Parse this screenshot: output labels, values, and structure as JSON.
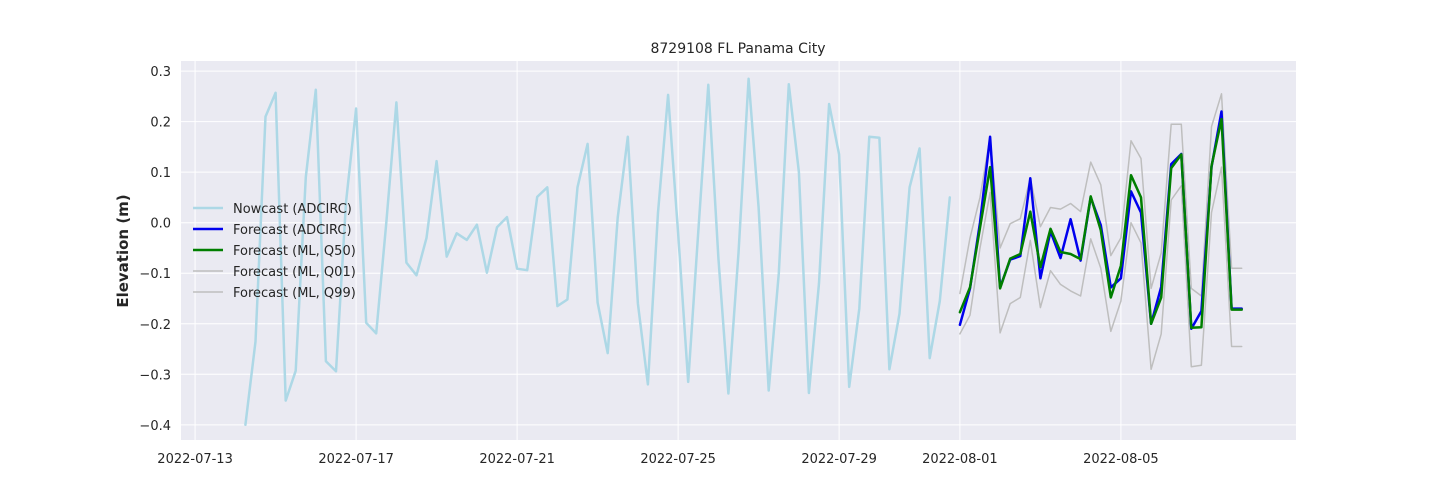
{
  "chart_data": {
    "type": "line",
    "title": "8729108 FL Panama City",
    "xlabel": "",
    "ylabel": "Elevation (m)",
    "x_unit": "days since 2022-07-13",
    "xlim": [
      -0.35,
      27.35
    ],
    "ylim": [
      -0.43,
      0.32
    ],
    "grid": true,
    "legend_position": "center-left",
    "x_ticks": [
      {
        "x": 0,
        "label": "2022-07-13"
      },
      {
        "x": 4,
        "label": "2022-07-17"
      },
      {
        "x": 8,
        "label": "2022-07-21"
      },
      {
        "x": 12,
        "label": "2022-07-25"
      },
      {
        "x": 16,
        "label": "2022-07-29"
      },
      {
        "x": 19,
        "label": "2022-08-01"
      },
      {
        "x": 23,
        "label": "2022-08-05"
      }
    ],
    "y_ticks": [
      {
        "y": 0.3,
        "label": "0.3"
      },
      {
        "y": 0.2,
        "label": "0.2"
      },
      {
        "y": 0.1,
        "label": "0.1"
      },
      {
        "y": 0.0,
        "label": "0.0"
      },
      {
        "y": -0.1,
        "label": "−0.1"
      },
      {
        "y": -0.2,
        "label": "−0.2"
      },
      {
        "y": -0.3,
        "label": "−0.3"
      },
      {
        "y": -0.4,
        "label": "−0.4"
      }
    ],
    "series": [
      {
        "name": "Nowcast (ADCIRC)",
        "color": "#add8e6",
        "width": 2.5,
        "x": [
          1.25,
          1.5,
          1.75,
          2.0,
          2.25,
          2.5,
          2.75,
          3.0,
          3.25,
          3.5,
          3.75,
          4.0,
          4.25,
          4.5,
          4.75,
          5.0,
          5.25,
          5.5,
          5.75,
          6.0,
          6.25,
          6.5,
          6.75,
          7.0,
          7.25,
          7.5,
          7.75,
          8.0,
          8.25,
          8.5,
          8.75,
          9.0,
          9.25,
          9.5,
          9.75,
          10.0,
          10.25,
          10.5,
          10.75,
          11.0,
          11.25,
          11.5,
          11.75,
          12.0,
          12.25,
          12.5,
          12.75,
          13.0,
          13.25,
          13.5,
          13.75,
          14.0,
          14.25,
          14.5,
          14.75,
          15.0,
          15.25,
          15.5,
          15.75,
          16.0,
          16.25,
          16.5,
          16.75,
          17.0,
          17.25,
          17.5,
          17.75,
          18.0,
          18.25,
          18.5,
          18.75
        ],
        "values": [
          -0.4,
          -0.235,
          0.21,
          0.257,
          -0.352,
          -0.293,
          0.09,
          0.263,
          -0.274,
          -0.294,
          0.04,
          0.226,
          -0.198,
          -0.219,
          0.0,
          0.238,
          -0.079,
          -0.104,
          -0.03,
          0.122,
          -0.067,
          -0.021,
          -0.034,
          -0.004,
          -0.099,
          -0.009,
          0.011,
          -0.091,
          -0.094,
          0.051,
          0.07,
          -0.165,
          -0.152,
          0.07,
          0.156,
          -0.158,
          -0.258,
          0.01,
          0.17,
          -0.16,
          -0.32,
          0.02,
          0.253,
          -0.02,
          -0.315,
          -0.02,
          0.273,
          -0.07,
          -0.338,
          -0.06,
          0.285,
          0.03,
          -0.332,
          -0.1,
          0.274,
          0.1,
          -0.337,
          -0.12,
          0.235,
          0.135,
          -0.325,
          -0.17,
          0.17,
          0.168,
          -0.29,
          -0.18,
          0.07,
          0.147,
          -0.268,
          -0.155,
          0.05
        ]
      },
      {
        "name": "Forecast (ADCIRC)",
        "color": "#0000ee",
        "width": 2.5,
        "x": [
          19.0,
          19.25,
          19.5,
          19.75,
          20.0,
          20.25,
          20.5,
          20.75,
          21.0,
          21.25,
          21.5,
          21.75,
          22.0,
          22.25,
          22.5,
          22.75,
          23.0,
          23.25,
          23.5,
          23.75,
          24.0,
          24.25,
          24.5,
          24.75,
          25.0,
          25.25,
          25.5,
          25.75,
          26.0
        ],
        "values": [
          -0.202,
          -0.13,
          0.0,
          0.17,
          -0.128,
          -0.073,
          -0.066,
          0.088,
          -0.11,
          -0.017,
          -0.07,
          0.007,
          -0.075,
          0.05,
          -0.005,
          -0.128,
          -0.11,
          0.062,
          0.02,
          -0.2,
          -0.127,
          0.116,
          0.136,
          -0.21,
          -0.175,
          0.11,
          0.22,
          -0.17,
          -0.17
        ]
      },
      {
        "name": "Forecast (ML, Q50)",
        "color": "#007f00",
        "width": 2.5,
        "x": [
          19.0,
          19.25,
          19.5,
          19.75,
          20.0,
          20.25,
          20.5,
          20.75,
          21.0,
          21.25,
          21.5,
          21.75,
          22.0,
          22.25,
          22.5,
          22.75,
          23.0,
          23.25,
          23.5,
          23.75,
          24.0,
          24.25,
          24.5,
          24.75,
          25.0,
          25.25,
          25.5,
          25.75,
          26.0
        ],
        "values": [
          -0.177,
          -0.128,
          -0.01,
          0.11,
          -0.13,
          -0.071,
          -0.062,
          0.022,
          -0.088,
          -0.012,
          -0.058,
          -0.062,
          -0.072,
          0.052,
          -0.015,
          -0.148,
          -0.085,
          0.094,
          0.05,
          -0.2,
          -0.148,
          0.108,
          0.135,
          -0.208,
          -0.207,
          0.112,
          0.205,
          -0.172,
          -0.172
        ]
      },
      {
        "name": "Forecast (ML, Q01)",
        "color": "#bebebe",
        "width": 1.5,
        "x": [
          19.0,
          19.25,
          19.5,
          19.75,
          20.0,
          20.25,
          20.5,
          20.75,
          21.0,
          21.25,
          21.5,
          21.75,
          22.0,
          22.25,
          22.5,
          22.75,
          23.0,
          23.25,
          23.5,
          23.75,
          24.0,
          24.25,
          24.5,
          24.75,
          25.0,
          25.25,
          25.5,
          25.75,
          26.0
        ],
        "values": [
          -0.22,
          -0.183,
          -0.05,
          0.06,
          -0.218,
          -0.16,
          -0.148,
          -0.035,
          -0.168,
          -0.095,
          -0.122,
          -0.135,
          -0.145,
          -0.032,
          -0.09,
          -0.215,
          -0.155,
          0.0,
          -0.04,
          -0.29,
          -0.22,
          0.045,
          0.073,
          -0.285,
          -0.282,
          0.02,
          0.11,
          -0.245,
          -0.245
        ]
      },
      {
        "name": "Forecast (ML, Q99)",
        "color": "#bebebe",
        "width": 1.5,
        "x": [
          19.0,
          19.25,
          19.5,
          19.75,
          20.0,
          20.25,
          20.5,
          20.75,
          21.0,
          21.25,
          21.5,
          21.75,
          22.0,
          22.25,
          22.5,
          22.75,
          23.0,
          23.25,
          23.5,
          23.75,
          24.0,
          24.25,
          24.5,
          24.75,
          25.0,
          25.25,
          25.5,
          25.75,
          26.0
        ],
        "values": [
          -0.14,
          -0.03,
          0.05,
          0.17,
          -0.05,
          -0.002,
          0.008,
          0.088,
          -0.008,
          0.03,
          0.027,
          0.038,
          0.022,
          0.12,
          0.075,
          -0.065,
          -0.03,
          0.162,
          0.127,
          -0.13,
          -0.06,
          0.195,
          0.195,
          -0.13,
          -0.145,
          0.19,
          0.255,
          -0.09,
          -0.09
        ]
      }
    ]
  }
}
